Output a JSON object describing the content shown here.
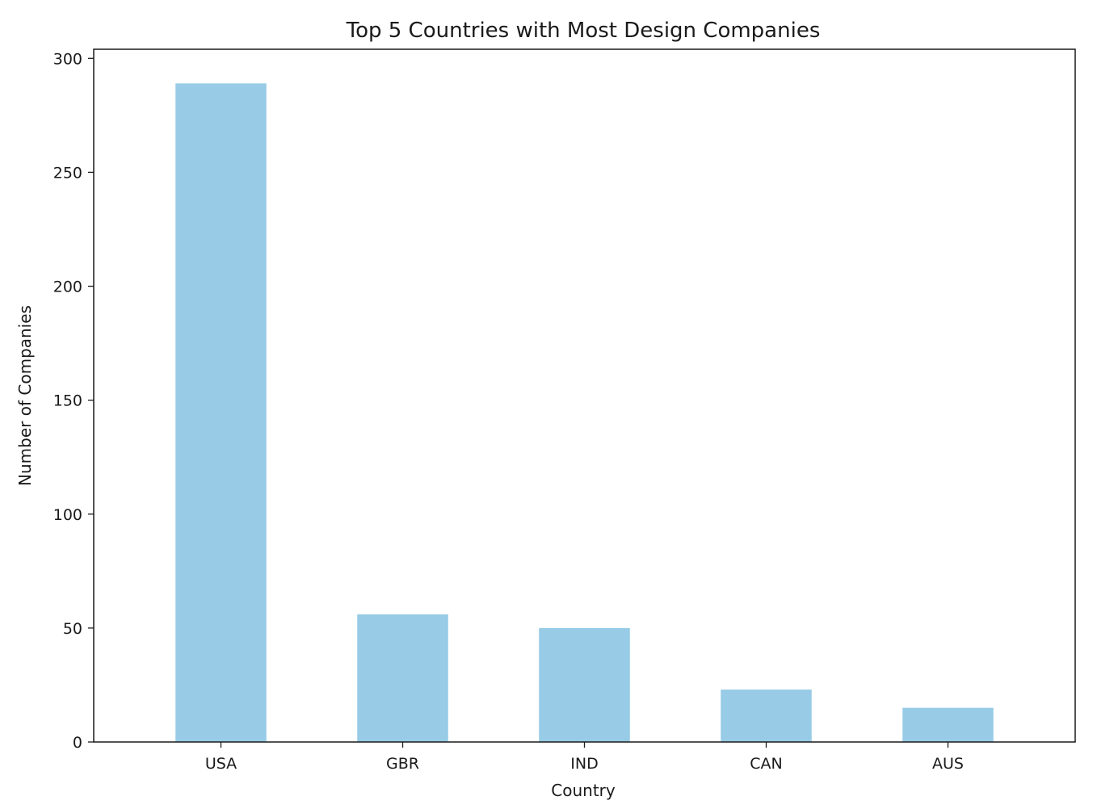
{
  "chart_data": {
    "type": "bar",
    "title": "Top 5 Countries with Most Design Companies",
    "xlabel": "Country",
    "ylabel": "Number of Companies",
    "categories": [
      "USA",
      "GBR",
      "IND",
      "CAN",
      "AUS"
    ],
    "values": [
      289,
      56,
      50,
      23,
      15
    ],
    "ylim": [
      0,
      304
    ],
    "yticks": [
      0,
      50,
      100,
      150,
      200,
      250,
      300
    ],
    "ytick_labels": [
      "0",
      "50",
      "100",
      "150",
      "200",
      "250",
      "300"
    ],
    "grid": false,
    "legend": "none",
    "bar_color": "#97cbe6"
  }
}
